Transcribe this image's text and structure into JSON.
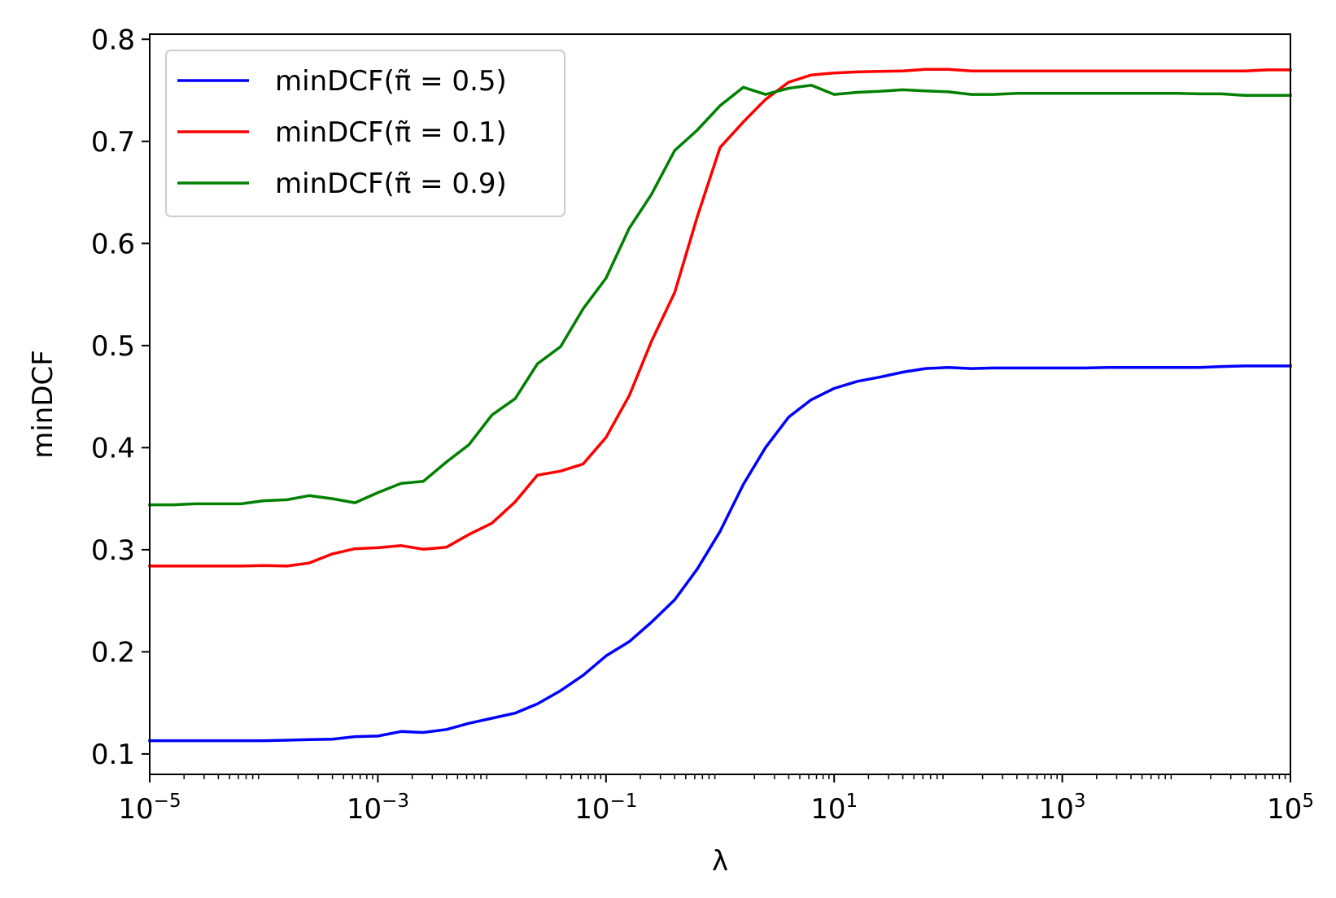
{
  "chart_data": {
    "type": "line",
    "xlabel": "λ",
    "ylabel": "minDCF",
    "xscale": "log",
    "xlim": [
      1e-05,
      100000.0
    ],
    "ylim": [
      0.08,
      0.805
    ],
    "legend_position": "top-left",
    "grid": false,
    "x_ticks": [
      {
        "value": 1e-05,
        "base": "10",
        "exp": "−5"
      },
      {
        "value": 0.001,
        "base": "10",
        "exp": "−3"
      },
      {
        "value": 0.1,
        "base": "10",
        "exp": "−1"
      },
      {
        "value": 10,
        "base": "10",
        "exp": "1"
      },
      {
        "value": 1000,
        "base": "10",
        "exp": "3"
      },
      {
        "value": 100000,
        "base": "10",
        "exp": "5"
      }
    ],
    "y_ticks": [
      {
        "value": 0.1,
        "label": "0.1"
      },
      {
        "value": 0.2,
        "label": "0.2"
      },
      {
        "value": 0.3,
        "label": "0.3"
      },
      {
        "value": 0.4,
        "label": "0.4"
      },
      {
        "value": 0.5,
        "label": "0.5"
      },
      {
        "value": 0.6,
        "label": "0.6"
      },
      {
        "value": 0.7,
        "label": "0.7"
      },
      {
        "value": 0.8,
        "label": "0.8"
      }
    ],
    "x": [
      1e-05,
      1.6e-05,
      2.5e-05,
      4e-05,
      6.3e-05,
      0.0001,
      0.00016,
      0.00025,
      0.0004,
      0.00063,
      0.001,
      0.0016,
      0.0025,
      0.004,
      0.0063,
      0.01,
      0.016,
      0.025,
      0.04,
      0.063,
      0.1,
      0.16,
      0.25,
      0.4,
      0.63,
      1,
      1.6,
      2.5,
      4,
      6.3,
      10,
      16,
      25,
      40,
      63,
      100,
      160,
      250,
      400,
      630,
      1000,
      1600,
      2500,
      4000,
      6300,
      10000,
      16000,
      25000,
      40000,
      63000,
      100000
    ],
    "series": [
      {
        "name": "minDCF(π̃ = 0.5)",
        "color": "#0000ff",
        "values": [
          0.113,
          0.113,
          0.113,
          0.113,
          0.113,
          0.113,
          0.1135,
          0.114,
          0.1145,
          0.117,
          0.1175,
          0.122,
          0.121,
          0.124,
          0.13,
          0.135,
          0.14,
          0.149,
          0.162,
          0.177,
          0.196,
          0.21,
          0.229,
          0.251,
          0.281,
          0.318,
          0.364,
          0.4,
          0.43,
          0.447,
          0.458,
          0.465,
          0.469,
          0.474,
          0.4775,
          0.4785,
          0.4775,
          0.478,
          0.478,
          0.478,
          0.478,
          0.478,
          0.4785,
          0.4785,
          0.4785,
          0.4785,
          0.4785,
          0.4795,
          0.48,
          0.48,
          0.48
        ]
      },
      {
        "name": "minDCF(π̃ = 0.1)",
        "color": "#ff0000",
        "values": [
          0.284,
          0.284,
          0.284,
          0.284,
          0.284,
          0.2845,
          0.284,
          0.287,
          0.296,
          0.301,
          0.302,
          0.304,
          0.3005,
          0.3025,
          0.315,
          0.326,
          0.347,
          0.373,
          0.377,
          0.384,
          0.41,
          0.451,
          0.504,
          0.552,
          0.626,
          0.694,
          0.719,
          0.741,
          0.758,
          0.765,
          0.767,
          0.768,
          0.7685,
          0.769,
          0.7705,
          0.7705,
          0.769,
          0.769,
          0.769,
          0.769,
          0.769,
          0.769,
          0.769,
          0.769,
          0.769,
          0.769,
          0.769,
          0.769,
          0.769,
          0.77,
          0.77
        ]
      },
      {
        "name": "minDCF(π̃ = 0.9)",
        "color": "#008000",
        "values": [
          0.344,
          0.344,
          0.345,
          0.345,
          0.345,
          0.348,
          0.349,
          0.353,
          0.35,
          0.346,
          0.356,
          0.365,
          0.367,
          0.386,
          0.403,
          0.432,
          0.448,
          0.482,
          0.499,
          0.536,
          0.566,
          0.615,
          0.648,
          0.691,
          0.711,
          0.735,
          0.753,
          0.746,
          0.752,
          0.755,
          0.746,
          0.748,
          0.749,
          0.7505,
          0.7495,
          0.7485,
          0.746,
          0.746,
          0.747,
          0.747,
          0.747,
          0.747,
          0.747,
          0.747,
          0.747,
          0.747,
          0.7465,
          0.7465,
          0.745,
          0.745,
          0.745
        ]
      }
    ]
  }
}
